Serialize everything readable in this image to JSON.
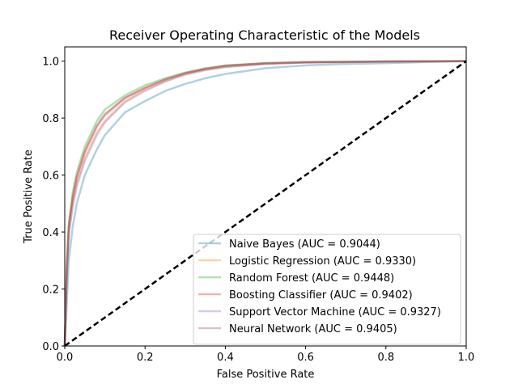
{
  "chart_data": {
    "type": "line",
    "title": "Receiver Operating Characteristic of the Models",
    "xlabel": "False Positive Rate",
    "ylabel": "True Positive Rate",
    "xlim": [
      0,
      1
    ],
    "ylim": [
      0,
      1.05
    ],
    "xticks": [
      0,
      0.2,
      0.4,
      0.6,
      0.8,
      1
    ],
    "xtick_labels": [
      "0.0",
      "0.2",
      "0.4",
      "0.6",
      "0.8",
      "1.0"
    ],
    "yticks": [
      0,
      0.2,
      0.4,
      0.6,
      0.8,
      1
    ],
    "ytick_labels": [
      "0.0",
      "0.2",
      "0.4",
      "0.6",
      "0.8",
      "1.0"
    ],
    "grid": false,
    "legend_position": "bottom-right",
    "diagonal": {
      "style": "dashed",
      "color": "#000000",
      "points": [
        [
          0,
          0
        ],
        [
          1,
          1
        ]
      ]
    },
    "series": [
      {
        "name": "Naive Bayes (AUC = 0.9044)",
        "color": "#1f77b4",
        "points": [
          [
            0,
            0
          ],
          [
            0.005,
            0.15
          ],
          [
            0.01,
            0.3
          ],
          [
            0.02,
            0.42
          ],
          [
            0.03,
            0.5
          ],
          [
            0.05,
            0.6
          ],
          [
            0.08,
            0.69
          ],
          [
            0.1,
            0.74
          ],
          [
            0.15,
            0.82
          ],
          [
            0.2,
            0.86
          ],
          [
            0.25,
            0.895
          ],
          [
            0.3,
            0.92
          ],
          [
            0.35,
            0.94
          ],
          [
            0.4,
            0.955
          ],
          [
            0.5,
            0.975
          ],
          [
            0.6,
            0.985
          ],
          [
            0.7,
            0.99
          ],
          [
            0.8,
            0.993
          ],
          [
            0.9,
            0.997
          ],
          [
            1,
            1
          ]
        ]
      },
      {
        "name": "Logistic Regression (AUC = 0.9330)",
        "color": "#ff7f0e",
        "points": [
          [
            0,
            0
          ],
          [
            0.005,
            0.25
          ],
          [
            0.01,
            0.4
          ],
          [
            0.02,
            0.5
          ],
          [
            0.03,
            0.57
          ],
          [
            0.05,
            0.66
          ],
          [
            0.08,
            0.75
          ],
          [
            0.1,
            0.79
          ],
          [
            0.15,
            0.86
          ],
          [
            0.2,
            0.9
          ],
          [
            0.25,
            0.93
          ],
          [
            0.3,
            0.955
          ],
          [
            0.35,
            0.97
          ],
          [
            0.4,
            0.98
          ],
          [
            0.5,
            0.99
          ],
          [
            0.6,
            0.995
          ],
          [
            0.8,
            0.998
          ],
          [
            1,
            1
          ]
        ]
      },
      {
        "name": "Random Forest (AUC = 0.9448)",
        "color": "#2ca02c",
        "points": [
          [
            0,
            0
          ],
          [
            0.005,
            0.28
          ],
          [
            0.01,
            0.43
          ],
          [
            0.02,
            0.54
          ],
          [
            0.03,
            0.61
          ],
          [
            0.05,
            0.7
          ],
          [
            0.08,
            0.79
          ],
          [
            0.1,
            0.83
          ],
          [
            0.15,
            0.88
          ],
          [
            0.2,
            0.915
          ],
          [
            0.25,
            0.94
          ],
          [
            0.3,
            0.96
          ],
          [
            0.35,
            0.975
          ],
          [
            0.4,
            0.985
          ],
          [
            0.5,
            0.993
          ],
          [
            0.6,
            0.997
          ],
          [
            0.8,
            0.999
          ],
          [
            1,
            1
          ]
        ]
      },
      {
        "name": "Boosting Classifier (AUC = 0.9402)",
        "color": "#d62728",
        "points": [
          [
            0,
            0
          ],
          [
            0.005,
            0.27
          ],
          [
            0.01,
            0.42
          ],
          [
            0.02,
            0.52
          ],
          [
            0.03,
            0.59
          ],
          [
            0.05,
            0.68
          ],
          [
            0.08,
            0.77
          ],
          [
            0.1,
            0.81
          ],
          [
            0.15,
            0.87
          ],
          [
            0.2,
            0.905
          ],
          [
            0.25,
            0.935
          ],
          [
            0.3,
            0.957
          ],
          [
            0.35,
            0.972
          ],
          [
            0.4,
            0.983
          ],
          [
            0.5,
            0.992
          ],
          [
            0.6,
            0.996
          ],
          [
            0.8,
            0.999
          ],
          [
            1,
            1
          ]
        ]
      },
      {
        "name": "Support Vector Machine (AUC = 0.9327)",
        "color": "#9467bd",
        "points": [
          [
            0,
            0
          ],
          [
            0.005,
            0.24
          ],
          [
            0.01,
            0.39
          ],
          [
            0.02,
            0.49
          ],
          [
            0.03,
            0.56
          ],
          [
            0.05,
            0.65
          ],
          [
            0.08,
            0.74
          ],
          [
            0.1,
            0.785
          ],
          [
            0.15,
            0.855
          ],
          [
            0.2,
            0.895
          ],
          [
            0.25,
            0.928
          ],
          [
            0.3,
            0.952
          ],
          [
            0.35,
            0.968
          ],
          [
            0.4,
            0.979
          ],
          [
            0.5,
            0.99
          ],
          [
            0.6,
            0.995
          ],
          [
            0.8,
            0.998
          ],
          [
            1,
            1
          ]
        ]
      },
      {
        "name": "Neural Network (AUC = 0.9405)",
        "color": "#8c564b",
        "points": [
          [
            0,
            0
          ],
          [
            0.005,
            0.27
          ],
          [
            0.01,
            0.42
          ],
          [
            0.02,
            0.525
          ],
          [
            0.03,
            0.595
          ],
          [
            0.05,
            0.685
          ],
          [
            0.08,
            0.775
          ],
          [
            0.1,
            0.815
          ],
          [
            0.15,
            0.872
          ],
          [
            0.2,
            0.907
          ],
          [
            0.25,
            0.936
          ],
          [
            0.3,
            0.958
          ],
          [
            0.35,
            0.973
          ],
          [
            0.4,
            0.984
          ],
          [
            0.5,
            0.993
          ],
          [
            0.6,
            0.996
          ],
          [
            0.8,
            0.999
          ],
          [
            1,
            1
          ]
        ]
      }
    ]
  }
}
